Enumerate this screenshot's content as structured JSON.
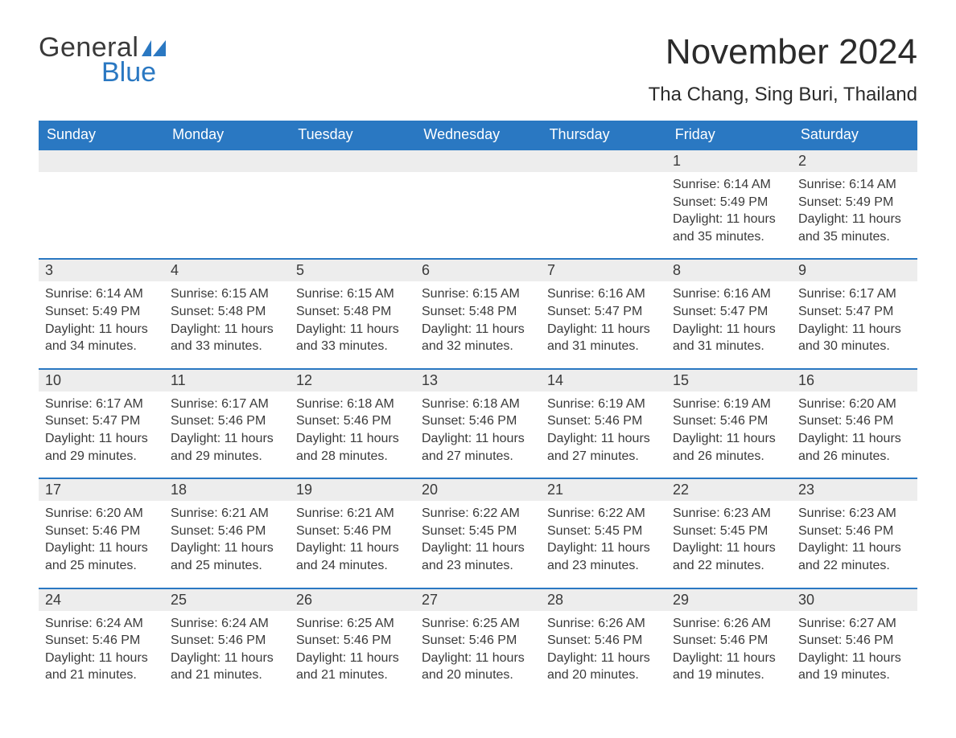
{
  "logo": {
    "text1": "General",
    "text2": "Blue",
    "flag_color": "#2a78c2"
  },
  "title": "November 2024",
  "location": "Tha Chang, Sing Buri, Thailand",
  "colors": {
    "header_bg": "#2a78c2",
    "header_text": "#ffffff",
    "daynum_bg": "#ededed",
    "daynum_border": "#2a78c2",
    "body_text": "#3a3a3a",
    "page_bg": "#ffffff"
  },
  "typography": {
    "title_fontsize": 44,
    "location_fontsize": 24,
    "dayhead_fontsize": 18,
    "cell_fontsize": 16
  },
  "day_headers": [
    "Sunday",
    "Monday",
    "Tuesday",
    "Wednesday",
    "Thursday",
    "Friday",
    "Saturday"
  ],
  "weeks": [
    [
      {
        "day": null
      },
      {
        "day": null
      },
      {
        "day": null
      },
      {
        "day": null
      },
      {
        "day": null
      },
      {
        "day": 1,
        "sunrise": "6:14 AM",
        "sunset": "5:49 PM",
        "daylight": "11 hours and 35 minutes."
      },
      {
        "day": 2,
        "sunrise": "6:14 AM",
        "sunset": "5:49 PM",
        "daylight": "11 hours and 35 minutes."
      }
    ],
    [
      {
        "day": 3,
        "sunrise": "6:14 AM",
        "sunset": "5:49 PM",
        "daylight": "11 hours and 34 minutes."
      },
      {
        "day": 4,
        "sunrise": "6:15 AM",
        "sunset": "5:48 PM",
        "daylight": "11 hours and 33 minutes."
      },
      {
        "day": 5,
        "sunrise": "6:15 AM",
        "sunset": "5:48 PM",
        "daylight": "11 hours and 33 minutes."
      },
      {
        "day": 6,
        "sunrise": "6:15 AM",
        "sunset": "5:48 PM",
        "daylight": "11 hours and 32 minutes."
      },
      {
        "day": 7,
        "sunrise": "6:16 AM",
        "sunset": "5:47 PM",
        "daylight": "11 hours and 31 minutes."
      },
      {
        "day": 8,
        "sunrise": "6:16 AM",
        "sunset": "5:47 PM",
        "daylight": "11 hours and 31 minutes."
      },
      {
        "day": 9,
        "sunrise": "6:17 AM",
        "sunset": "5:47 PM",
        "daylight": "11 hours and 30 minutes."
      }
    ],
    [
      {
        "day": 10,
        "sunrise": "6:17 AM",
        "sunset": "5:47 PM",
        "daylight": "11 hours and 29 minutes."
      },
      {
        "day": 11,
        "sunrise": "6:17 AM",
        "sunset": "5:46 PM",
        "daylight": "11 hours and 29 minutes."
      },
      {
        "day": 12,
        "sunrise": "6:18 AM",
        "sunset": "5:46 PM",
        "daylight": "11 hours and 28 minutes."
      },
      {
        "day": 13,
        "sunrise": "6:18 AM",
        "sunset": "5:46 PM",
        "daylight": "11 hours and 27 minutes."
      },
      {
        "day": 14,
        "sunrise": "6:19 AM",
        "sunset": "5:46 PM",
        "daylight": "11 hours and 27 minutes."
      },
      {
        "day": 15,
        "sunrise": "6:19 AM",
        "sunset": "5:46 PM",
        "daylight": "11 hours and 26 minutes."
      },
      {
        "day": 16,
        "sunrise": "6:20 AM",
        "sunset": "5:46 PM",
        "daylight": "11 hours and 26 minutes."
      }
    ],
    [
      {
        "day": 17,
        "sunrise": "6:20 AM",
        "sunset": "5:46 PM",
        "daylight": "11 hours and 25 minutes."
      },
      {
        "day": 18,
        "sunrise": "6:21 AM",
        "sunset": "5:46 PM",
        "daylight": "11 hours and 25 minutes."
      },
      {
        "day": 19,
        "sunrise": "6:21 AM",
        "sunset": "5:46 PM",
        "daylight": "11 hours and 24 minutes."
      },
      {
        "day": 20,
        "sunrise": "6:22 AM",
        "sunset": "5:45 PM",
        "daylight": "11 hours and 23 minutes."
      },
      {
        "day": 21,
        "sunrise": "6:22 AM",
        "sunset": "5:45 PM",
        "daylight": "11 hours and 23 minutes."
      },
      {
        "day": 22,
        "sunrise": "6:23 AM",
        "sunset": "5:45 PM",
        "daylight": "11 hours and 22 minutes."
      },
      {
        "day": 23,
        "sunrise": "6:23 AM",
        "sunset": "5:46 PM",
        "daylight": "11 hours and 22 minutes."
      }
    ],
    [
      {
        "day": 24,
        "sunrise": "6:24 AM",
        "sunset": "5:46 PM",
        "daylight": "11 hours and 21 minutes."
      },
      {
        "day": 25,
        "sunrise": "6:24 AM",
        "sunset": "5:46 PM",
        "daylight": "11 hours and 21 minutes."
      },
      {
        "day": 26,
        "sunrise": "6:25 AM",
        "sunset": "5:46 PM",
        "daylight": "11 hours and 21 minutes."
      },
      {
        "day": 27,
        "sunrise": "6:25 AM",
        "sunset": "5:46 PM",
        "daylight": "11 hours and 20 minutes."
      },
      {
        "day": 28,
        "sunrise": "6:26 AM",
        "sunset": "5:46 PM",
        "daylight": "11 hours and 20 minutes."
      },
      {
        "day": 29,
        "sunrise": "6:26 AM",
        "sunset": "5:46 PM",
        "daylight": "11 hours and 19 minutes."
      },
      {
        "day": 30,
        "sunrise": "6:27 AM",
        "sunset": "5:46 PM",
        "daylight": "11 hours and 19 minutes."
      }
    ]
  ],
  "labels": {
    "sunrise": "Sunrise:",
    "sunset": "Sunset:",
    "daylight": "Daylight:"
  }
}
